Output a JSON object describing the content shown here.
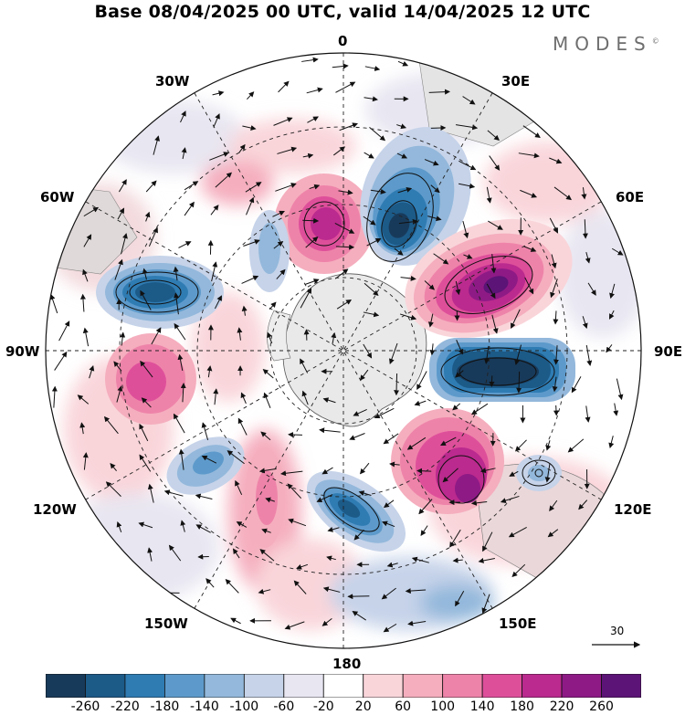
{
  "title": "Base 08/04/2025 00 UTC, valid 14/04/2025 12 UTC",
  "brand": {
    "name": "MODES",
    "mark": "©"
  },
  "map": {
    "projection": "polar stereographic (south pole)",
    "longitude_labels": {
      "top": "0",
      "upper_left": "30W",
      "upper_right": "30E",
      "left_upper": "60W",
      "right_upper": "60E",
      "left": "90W",
      "right": "90E",
      "left_lower": "120W",
      "right_lower": "120E",
      "lower_left": "150W",
      "lower_right": "150E",
      "bottom": "180"
    },
    "reference_vector": "30"
  },
  "colorbar": {
    "ticks": [
      "-260",
      "-220",
      "-180",
      "-140",
      "-100",
      "-60",
      "-20",
      "20",
      "60",
      "100",
      "140",
      "180",
      "220",
      "260"
    ],
    "colors": [
      "#183a5a",
      "#1c5a88",
      "#2f7cb3",
      "#5d9acb",
      "#93b8db",
      "#c6d3e9",
      "#e8e6f1",
      "#ffffff",
      "#f9d5da",
      "#f5aebe",
      "#ee83a9",
      "#de4f9a",
      "#bb2a8e",
      "#8e1a86",
      "#5c1476"
    ]
  }
}
